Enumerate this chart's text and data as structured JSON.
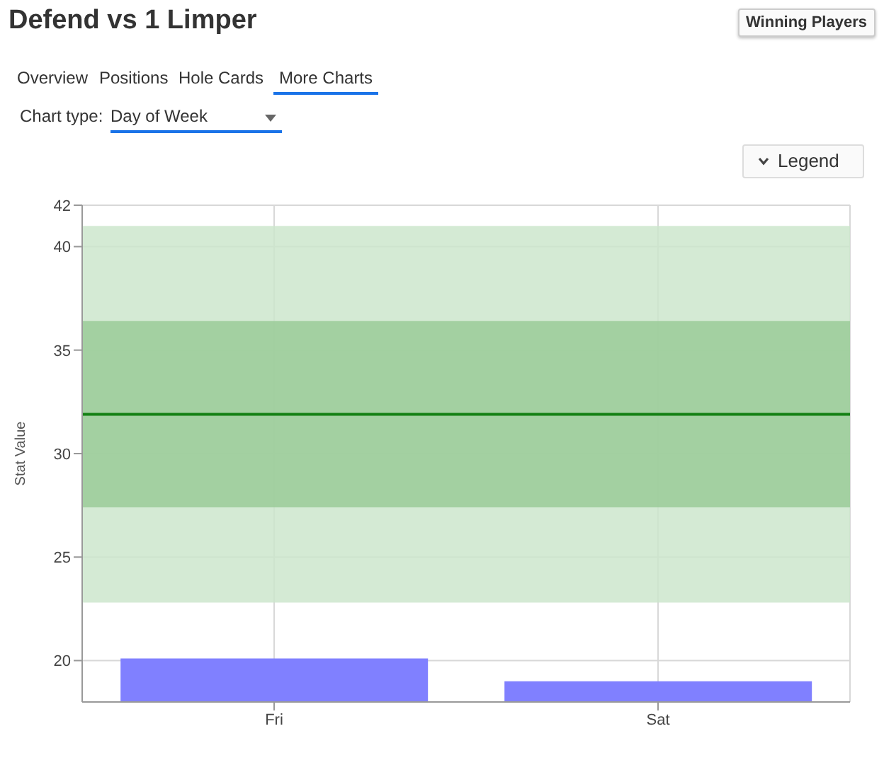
{
  "chart_data": {
    "type": "bar",
    "title": "Defend vs 1 Limper",
    "ylabel": "Stat Value",
    "categories": [
      "Fri",
      "Sat"
    ],
    "values": [
      20.1,
      19.0
    ],
    "color": "#8080ff",
    "ylim": [
      18,
      42
    ],
    "yticks": [
      20,
      25,
      30,
      35,
      40,
      42
    ],
    "grid": true,
    "legend": false,
    "bands": [
      {
        "axis": "y",
        "from": 22.8,
        "to": 41.0,
        "color": "#cde6cc"
      },
      {
        "axis": "y",
        "from": 27.4,
        "to": 36.4,
        "color": "#9acb98"
      }
    ],
    "ref_lines": [
      {
        "axis": "y",
        "value": 31.9,
        "color": "#138013",
        "line_style": "solid"
      }
    ],
    "annotations": [
      "Winning Players",
      "Overview",
      "Positions",
      "Hole Cards",
      "More Charts",
      "Chart type:",
      "Day of Week",
      "Legend"
    ]
  }
}
